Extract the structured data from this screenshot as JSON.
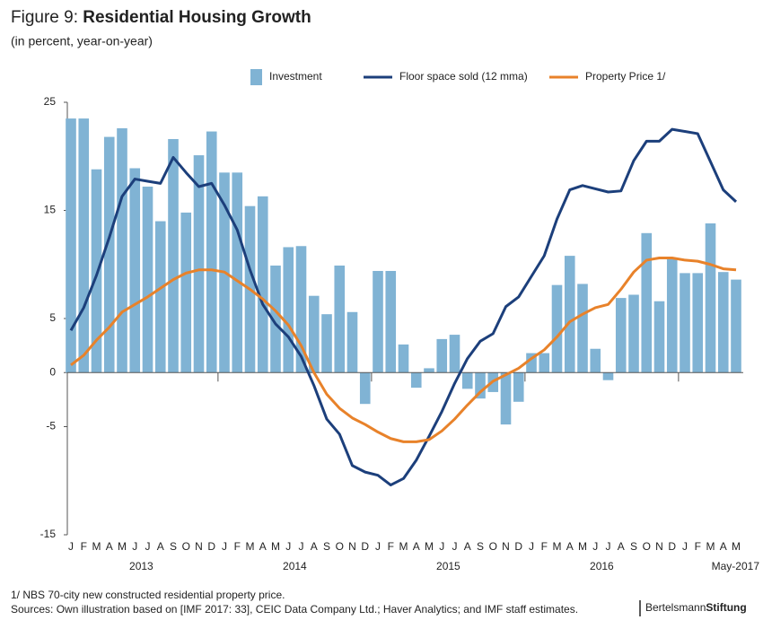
{
  "chart_data": {
    "type": "bar_line",
    "figure_label": "Figure 9:",
    "title": "Residential Housing Growth",
    "subtitle": "(in percent, year-on-year)",
    "categories": [
      "J",
      "F",
      "M",
      "A",
      "M",
      "J",
      "J",
      "A",
      "S",
      "O",
      "N",
      "D",
      "J",
      "F",
      "M",
      "A",
      "M",
      "J",
      "J",
      "A",
      "S",
      "O",
      "N",
      "D",
      "J",
      "F",
      "M",
      "A",
      "M",
      "J",
      "J",
      "A",
      "S",
      "O",
      "N",
      "D",
      "J",
      "F",
      "M",
      "A",
      "M",
      "J",
      "J",
      "A",
      "S",
      "O",
      "N",
      "D",
      "J",
      "F",
      "M",
      "A",
      "M"
    ],
    "year_labels": [
      "2013",
      "2014",
      "2015",
      "2016",
      "May-2017"
    ],
    "series": [
      {
        "name": "Investment",
        "kind": "bar",
        "color": "#80b3d4",
        "values": [
          23.5,
          23.5,
          18.8,
          21.8,
          22.6,
          18.9,
          17.2,
          14,
          21.6,
          14.8,
          20.1,
          22.3,
          18.5,
          18.5,
          15.4,
          16.3,
          9.9,
          11.6,
          11.7,
          7.1,
          5.4,
          9.9,
          5.6,
          -2.9,
          9.4,
          9.4,
          2.6,
          -1.4,
          0.4,
          3.1,
          3.5,
          -1.5,
          -2.4,
          -1.8,
          -4.8,
          -2.7,
          1.8,
          1.8,
          8.1,
          10.8,
          8.2,
          2.2,
          -0.7,
          6.9,
          7.2,
          12.9,
          6.6,
          10.6,
          9.2,
          9.2,
          13.8,
          9.3,
          8.6
        ]
      },
      {
        "name": "Floor space sold (12 mma)",
        "kind": "line",
        "color": "#1c3f7b",
        "values": [
          3.9,
          6,
          9,
          12.5,
          16.3,
          17.9,
          17.7,
          17.5,
          19.9,
          18.5,
          17.2,
          17.5,
          15.5,
          13.2,
          9.5,
          6.3,
          4.5,
          3.3,
          1.5,
          -1.2,
          -4.3,
          -5.7,
          -8.6,
          -9.2,
          -9.5,
          -10.4,
          -9.8,
          -8.1,
          -5.9,
          -3.6,
          -1,
          1.3,
          2.9,
          3.6,
          6.1,
          7,
          8.9,
          10.8,
          14.2,
          16.9,
          17.3,
          17,
          16.7,
          16.8,
          19.6,
          21.4,
          21.4,
          22.5,
          22.3,
          22.1,
          19.5,
          16.9,
          15.8
        ]
      },
      {
        "name": "Property Price 1/",
        "kind": "line",
        "color": "#e8822a",
        "values": [
          0.7,
          1.6,
          3,
          4.2,
          5.6,
          6.3,
          7,
          7.8,
          8.6,
          9.2,
          9.5,
          9.5,
          9.3,
          8.5,
          7.7,
          6.8,
          5.7,
          4.4,
          2.5,
          0,
          -2,
          -3.3,
          -4.2,
          -4.8,
          -5.5,
          -6.1,
          -6.4,
          -6.4,
          -6.2,
          -5.4,
          -4.3,
          -3,
          -1.8,
          -0.8,
          -0.2,
          0.4,
          1.3,
          2.1,
          3.3,
          4.7,
          5.4,
          6,
          6.3,
          7.7,
          9.3,
          10.4,
          10.6,
          10.6,
          10.4,
          10.3,
          10,
          9.6,
          9.5
        ]
      }
    ],
    "ylim": [
      -15,
      25
    ],
    "yticks": [
      25,
      15,
      5,
      0,
      -5,
      -15
    ],
    "grid": false,
    "legend": "top",
    "footnote": "1/ NBS 70-city new constructed residential property price.",
    "source": "Sources: Own illustration based on [IMF 2017: 33], CEIC Data Company Ltd.; Haver Analytics; and IMF staff estimates.",
    "brand": [
      "Bertelsmann",
      "Stiftung"
    ]
  }
}
